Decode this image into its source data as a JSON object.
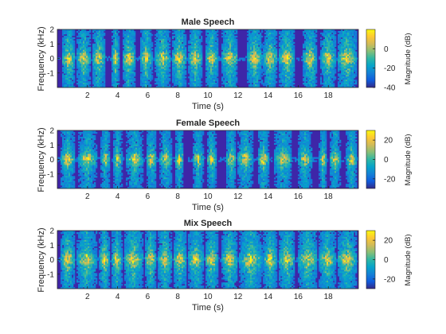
{
  "chart_data": [
    {
      "type": "heatmap",
      "title": "Male Speech",
      "xlabel": "Time (s)",
      "ylabel": "Frequency (kHz)",
      "xlim": [
        0,
        20
      ],
      "ylim": [
        -2,
        2
      ],
      "xticks": [
        "2",
        "4",
        "6",
        "8",
        "10",
        "12",
        "14",
        "16",
        "18"
      ],
      "yticks": [
        "2",
        "1",
        "0",
        "-1"
      ],
      "colorbar": {
        "label": "Magnitude (dB)",
        "range": [
          -40,
          20
        ],
        "ticks": [
          "0",
          "-20",
          "-40"
        ]
      },
      "speech_bursts": [
        [
          0.3,
          1.2
        ],
        [
          1.3,
          2.2
        ],
        [
          2.3,
          3.2
        ],
        [
          3.6,
          4.1
        ],
        [
          4.3,
          5.2
        ],
        [
          5.5,
          6.3
        ],
        [
          6.5,
          7.5
        ],
        [
          7.6,
          8.6
        ],
        [
          8.7,
          9.6
        ],
        [
          9.8,
          10.7
        ],
        [
          10.9,
          12.0
        ],
        [
          12.6,
          13.6
        ],
        [
          13.7,
          14.6
        ],
        [
          14.7,
          15.8
        ],
        [
          16.3,
          17.3
        ],
        [
          17.5,
          18.5
        ],
        [
          18.6,
          19.9
        ]
      ]
    },
    {
      "type": "heatmap",
      "title": "Female Speech",
      "xlabel": "Time (s)",
      "ylabel": "Frequency (kHz)",
      "xlim": [
        0,
        20
      ],
      "ylim": [
        -2,
        2
      ],
      "xticks": [
        "2",
        "4",
        "6",
        "8",
        "10",
        "12",
        "14",
        "16",
        "18"
      ],
      "yticks": [
        "2",
        "1",
        "0",
        "-1"
      ],
      "colorbar": {
        "label": "Magnitude (dB)",
        "range": [
          -30,
          30
        ],
        "ticks": [
          "20",
          "0",
          "-20"
        ]
      },
      "speech_bursts": [
        [
          0.2,
          1.2
        ],
        [
          1.4,
          2.6
        ],
        [
          2.9,
          3.5
        ],
        [
          3.7,
          4.3
        ],
        [
          4.6,
          5.7
        ],
        [
          5.9,
          6.6
        ],
        [
          6.8,
          7.6
        ],
        [
          7.8,
          8.4
        ],
        [
          9.0,
          9.7
        ],
        [
          9.9,
          10.6
        ],
        [
          11.2,
          11.9
        ],
        [
          12.0,
          13.0
        ],
        [
          13.3,
          14.1
        ],
        [
          14.4,
          15.6
        ],
        [
          16.0,
          16.9
        ],
        [
          17.4,
          17.9
        ],
        [
          18.1,
          18.8
        ],
        [
          19.2,
          19.9
        ]
      ]
    },
    {
      "type": "heatmap",
      "title": "Mix Speech",
      "xlabel": "Time (s)",
      "ylabel": "Frequency (kHz)",
      "xlim": [
        0,
        20
      ],
      "ylim": [
        -2,
        2
      ],
      "xticks": [
        "2",
        "4",
        "6",
        "8",
        "10",
        "12",
        "14",
        "16",
        "18"
      ],
      "yticks": [
        "2",
        "1",
        "0",
        "-1"
      ],
      "colorbar": {
        "label": "Magnitude (dB)",
        "range": [
          -30,
          30
        ],
        "ticks": [
          "20",
          "0",
          "-20"
        ]
      },
      "speech_bursts": [
        [
          0.2,
          1.2
        ],
        [
          1.3,
          2.6
        ],
        [
          2.8,
          3.5
        ],
        [
          3.6,
          4.3
        ],
        [
          4.4,
          5.7
        ],
        [
          5.8,
          6.6
        ],
        [
          6.7,
          7.6
        ],
        [
          7.7,
          8.6
        ],
        [
          8.7,
          9.7
        ],
        [
          9.8,
          10.7
        ],
        [
          10.9,
          12.0
        ],
        [
          12.1,
          13.6
        ],
        [
          13.7,
          14.6
        ],
        [
          14.7,
          15.8
        ],
        [
          16.0,
          17.3
        ],
        [
          17.4,
          18.5
        ],
        [
          18.6,
          19.9
        ]
      ]
    }
  ],
  "colors": {
    "viridis": [
      "#440154",
      "#3b528b",
      "#21918c",
      "#5ec962",
      "#fde725"
    ],
    "parula": [
      "#352a87",
      "#0f5cdd",
      "#1481d6",
      "#06a4ca",
      "#2eb7a4",
      "#87bf77",
      "#d1bb59",
      "#fec832",
      "#f9fb0e"
    ],
    "background_low": "#3e26a8"
  }
}
